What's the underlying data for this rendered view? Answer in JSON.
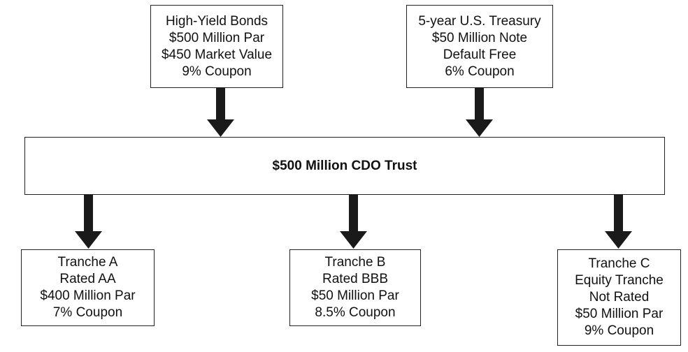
{
  "sources": [
    {
      "id": "high-yield-bonds",
      "lines": [
        "High-Yield Bonds",
        "$500 Million Par",
        "$450 Market Value",
        "9% Coupon"
      ]
    },
    {
      "id": "us-treasury",
      "lines": [
        "5-year U.S. Treasury",
        "$50 Million Note",
        "Default Free",
        "6% Coupon"
      ]
    }
  ],
  "trust": {
    "title": "$500 Million CDO Trust"
  },
  "tranches": [
    {
      "id": "tranche-a",
      "lines": [
        "Tranche A",
        "Rated AA",
        "$400 Million Par",
        "7% Coupon"
      ]
    },
    {
      "id": "tranche-b",
      "lines": [
        "Tranche B",
        "Rated BBB",
        "$50 Million Par",
        "8.5% Coupon"
      ]
    },
    {
      "id": "tranche-c",
      "lines": [
        "Tranche C",
        "Equity Tranche",
        "Not Rated",
        "$50 Million Par",
        "9% Coupon"
      ]
    }
  ],
  "colors": {
    "arrow": "#1a1a1a",
    "border": "#222222"
  }
}
